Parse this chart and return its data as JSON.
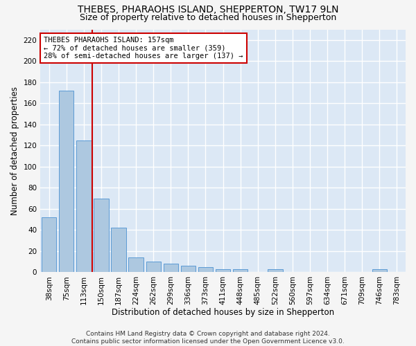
{
  "title": "THEBES, PHARAOHS ISLAND, SHEPPERTON, TW17 9LN",
  "subtitle": "Size of property relative to detached houses in Shepperton",
  "xlabel": "Distribution of detached houses by size in Shepperton",
  "ylabel": "Number of detached properties",
  "categories": [
    "38sqm",
    "75sqm",
    "113sqm",
    "150sqm",
    "187sqm",
    "224sqm",
    "262sqm",
    "299sqm",
    "336sqm",
    "373sqm",
    "411sqm",
    "448sqm",
    "485sqm",
    "522sqm",
    "560sqm",
    "597sqm",
    "634sqm",
    "671sqm",
    "709sqm",
    "746sqm",
    "783sqm"
  ],
  "values": [
    52,
    172,
    125,
    70,
    42,
    14,
    10,
    8,
    6,
    5,
    3,
    3,
    0,
    3,
    0,
    0,
    0,
    0,
    0,
    3,
    0
  ],
  "bar_color": "#adc8e0",
  "bar_edge_color": "#5b9bd5",
  "annotation_text": "THEBES PHARAOHS ISLAND: 157sqm\n← 72% of detached houses are smaller (359)\n28% of semi-detached houses are larger (137) →",
  "annotation_box_color": "#ffffff",
  "annotation_box_edge": "#cc0000",
  "vline_color": "#cc0000",
  "vline_x": 2.5,
  "ylim": [
    0,
    230
  ],
  "yticks": [
    0,
    20,
    40,
    60,
    80,
    100,
    120,
    140,
    160,
    180,
    200,
    220
  ],
  "background_color": "#dce8f5",
  "grid_color": "#ffffff",
  "footer": "Contains HM Land Registry data © Crown copyright and database right 2024.\nContains public sector information licensed under the Open Government Licence v3.0.",
  "title_fontsize": 10,
  "subtitle_fontsize": 9,
  "xlabel_fontsize": 8.5,
  "ylabel_fontsize": 8.5,
  "tick_fontsize": 7.5,
  "annotation_fontsize": 7.5,
  "footer_fontsize": 6.5
}
